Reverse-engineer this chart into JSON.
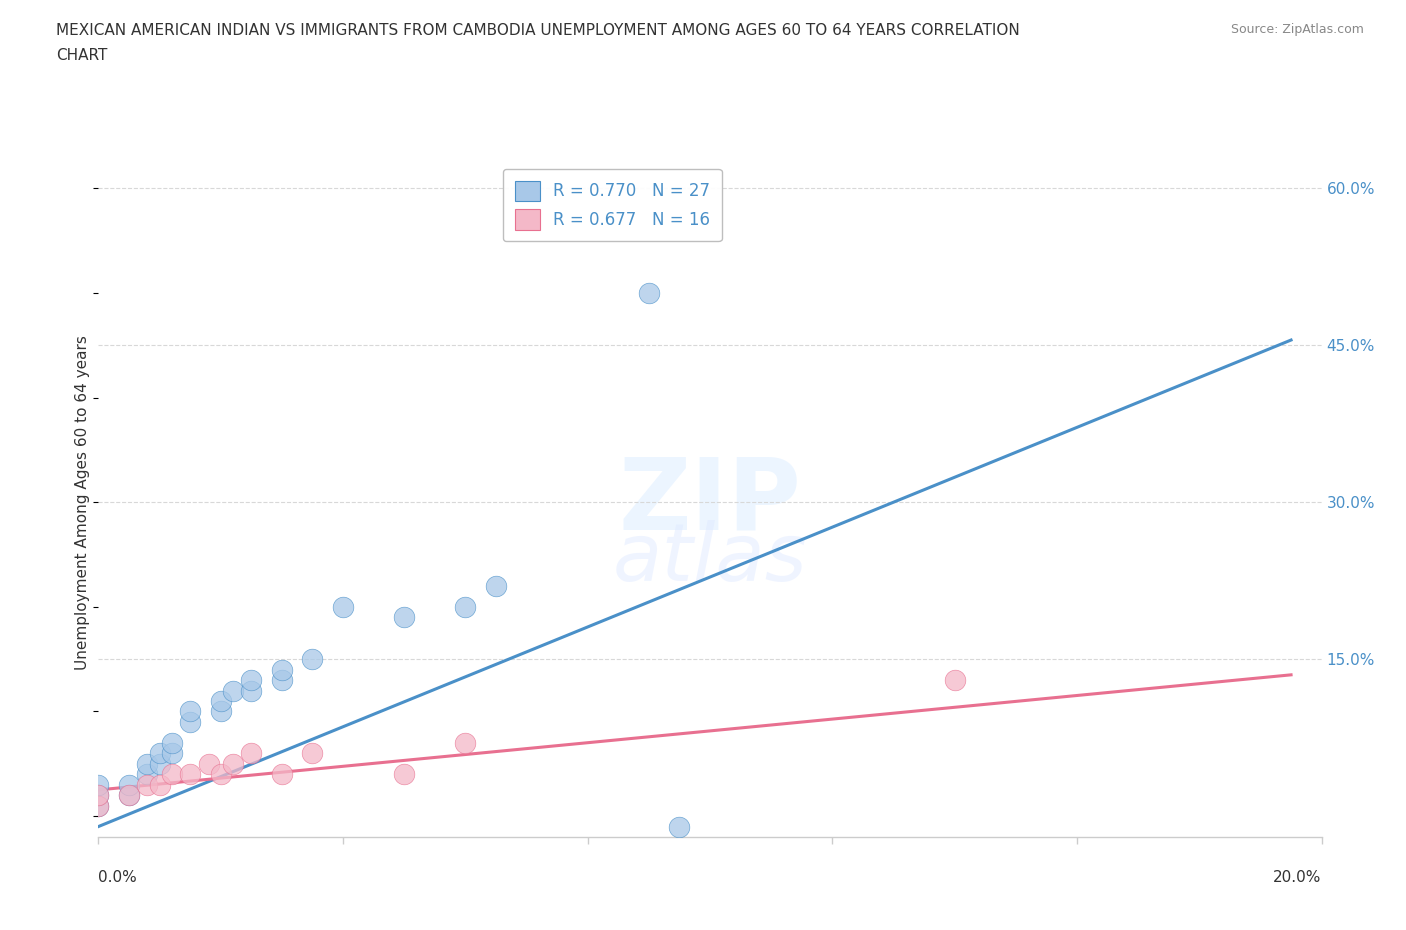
{
  "title_line1": "MEXICAN AMERICAN INDIAN VS IMMIGRANTS FROM CAMBODIA UNEMPLOYMENT AMONG AGES 60 TO 64 YEARS CORRELATION",
  "title_line2": "CHART",
  "source": "Source: ZipAtlas.com",
  "ylabel": "Unemployment Among Ages 60 to 64 years",
  "xlim": [
    0.0,
    0.2
  ],
  "ylim": [
    -0.02,
    0.62
  ],
  "ytick_vals": [
    0.0,
    0.15,
    0.3,
    0.45,
    0.6
  ],
  "ytick_labels": [
    "",
    "15.0%",
    "30.0%",
    "45.0%",
    "60.0%"
  ],
  "xtick_vals": [
    0.0,
    0.04,
    0.08,
    0.12,
    0.16,
    0.2
  ],
  "blue_color": "#a8c8e8",
  "pink_color": "#f4b8c8",
  "blue_line_color": "#4a90c8",
  "pink_line_color": "#e87090",
  "legend_R1": "R = 0.770",
  "legend_N1": "N = 27",
  "legend_R2": "R = 0.677",
  "legend_N2": "N = 16",
  "blue_scatter_x": [
    0.0,
    0.0,
    0.0,
    0.005,
    0.005,
    0.008,
    0.008,
    0.01,
    0.01,
    0.012,
    0.012,
    0.015,
    0.015,
    0.02,
    0.02,
    0.022,
    0.025,
    0.025,
    0.03,
    0.03,
    0.035,
    0.04,
    0.05,
    0.06,
    0.065,
    0.09,
    0.095
  ],
  "blue_scatter_y": [
    0.01,
    0.02,
    0.03,
    0.02,
    0.03,
    0.04,
    0.05,
    0.05,
    0.06,
    0.06,
    0.07,
    0.09,
    0.1,
    0.1,
    0.11,
    0.12,
    0.12,
    0.13,
    0.13,
    0.14,
    0.15,
    0.2,
    0.19,
    0.2,
    0.22,
    0.5,
    -0.01
  ],
  "pink_scatter_x": [
    0.0,
    0.0,
    0.005,
    0.008,
    0.01,
    0.012,
    0.015,
    0.018,
    0.02,
    0.022,
    0.025,
    0.03,
    0.035,
    0.05,
    0.06,
    0.14
  ],
  "pink_scatter_y": [
    0.01,
    0.02,
    0.02,
    0.03,
    0.03,
    0.04,
    0.04,
    0.05,
    0.04,
    0.05,
    0.06,
    0.04,
    0.06,
    0.04,
    0.07,
    0.13
  ],
  "blue_line_x": [
    0.0,
    0.195
  ],
  "blue_line_y": [
    -0.01,
    0.455
  ],
  "pink_line_x": [
    0.0,
    0.195
  ],
  "pink_line_y": [
    0.025,
    0.135
  ],
  "grid_color": "#d8d8d8",
  "axis_color": "#cccccc",
  "text_color": "#333333",
  "tick_color": "#4a90c8",
  "background_color": "#ffffff"
}
